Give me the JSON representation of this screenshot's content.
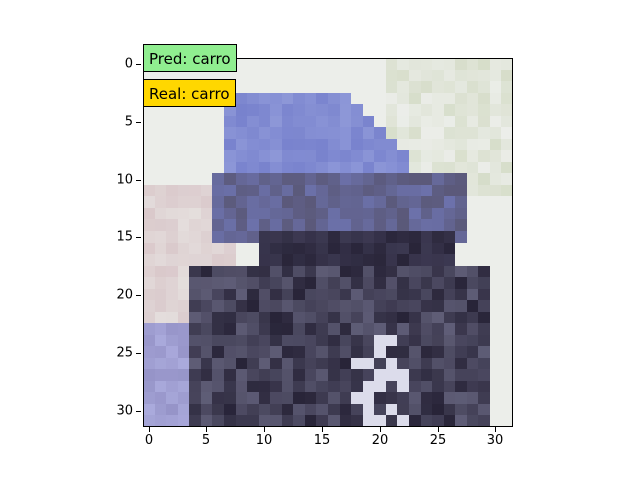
{
  "annotations": {
    "pred": {
      "text": "Pred: carro",
      "color": "#90ee90"
    },
    "real": {
      "text": "Real: carro",
      "color": "#ffd700"
    }
  },
  "axes": {
    "x_ticks": [
      "0",
      "5",
      "10",
      "15",
      "20",
      "25",
      "30"
    ],
    "y_ticks": [
      "0",
      "5",
      "10",
      "15",
      "20",
      "25",
      "30"
    ]
  },
  "image": {
    "description_colors": {
      "background": "#eef0ee",
      "car_body": "#7c84cc",
      "car_dark": "#2a2638",
      "shadow": "#8a86b0"
    }
  }
}
